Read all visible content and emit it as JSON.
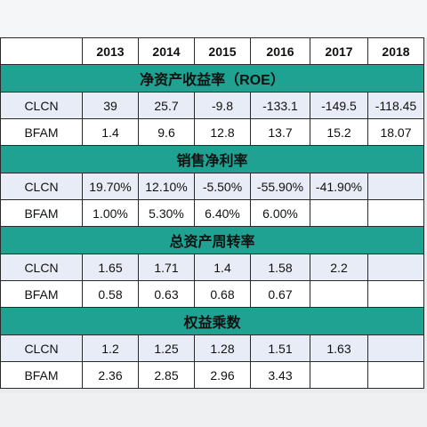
{
  "header": {
    "corner": "",
    "years": [
      "2013",
      "2014",
      "2015",
      "2016",
      "2017",
      "2018"
    ]
  },
  "sections": [
    {
      "title": "净资产收益率（ROE）",
      "rows": [
        {
          "company": "CLCN",
          "values": [
            "39",
            "25.7",
            "-9.8",
            "-133.1",
            "-149.5",
            "-118.45"
          ]
        },
        {
          "company": "BFAM",
          "values": [
            "1.4",
            "9.6",
            "12.8",
            "13.7",
            "15.2",
            "18.07"
          ]
        }
      ]
    },
    {
      "title": "销售净利率",
      "rows": [
        {
          "company": "CLCN",
          "values": [
            "19.70%",
            "12.10%",
            "-5.50%",
            "-55.90%",
            "-41.90%",
            ""
          ]
        },
        {
          "company": "BFAM",
          "values": [
            "1.00%",
            "5.30%",
            "6.40%",
            "6.00%",
            "",
            ""
          ]
        }
      ]
    },
    {
      "title": "总资产周转率",
      "rows": [
        {
          "company": "CLCN",
          "values": [
            "1.65",
            "1.71",
            "1.4",
            "1.58",
            "2.2",
            ""
          ]
        },
        {
          "company": "BFAM",
          "values": [
            "0.58",
            "0.63",
            "0.68",
            "0.67",
            "",
            ""
          ]
        }
      ]
    },
    {
      "title": "权益乘数",
      "rows": [
        {
          "company": "CLCN",
          "values": [
            "1.2",
            "1.25",
            "1.28",
            "1.51",
            "1.63",
            ""
          ]
        },
        {
          "company": "BFAM",
          "values": [
            "2.36",
            "2.85",
            "2.96",
            "3.43",
            "",
            ""
          ]
        }
      ]
    }
  ],
  "colors": {
    "section_header_bg": "#1fa291",
    "row_alt_bg": "#e8ecf6",
    "border": "#2a2a2a"
  }
}
